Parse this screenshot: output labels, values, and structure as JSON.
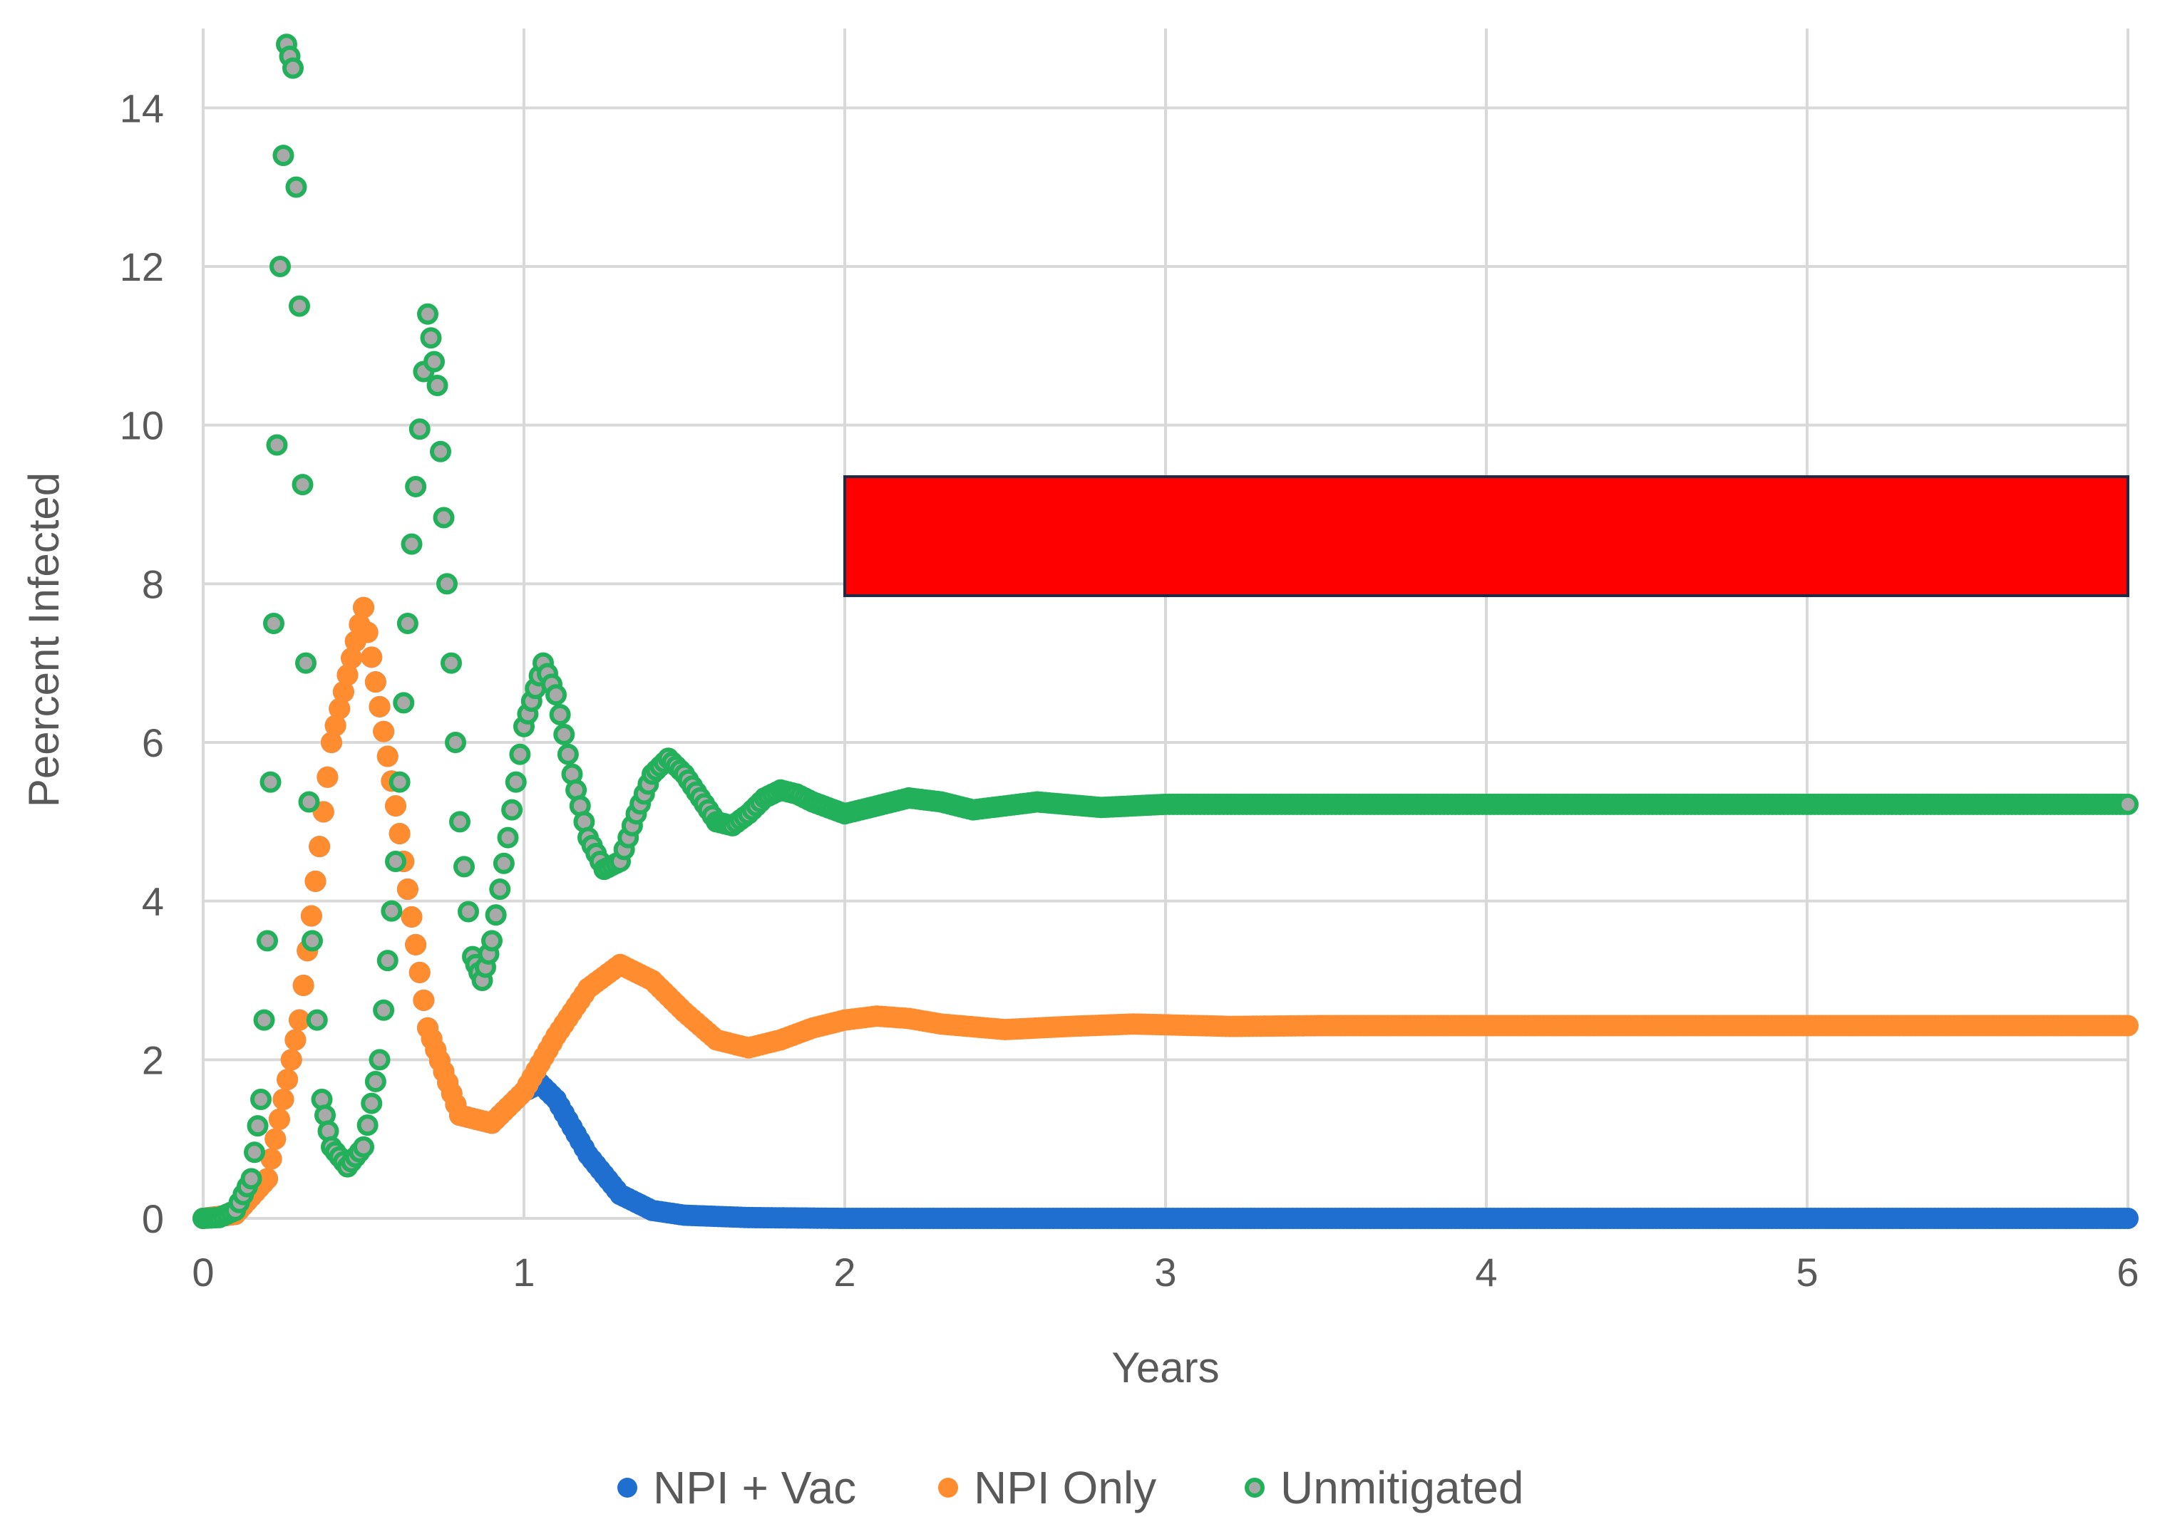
{
  "chart_data": {
    "type": "scatter",
    "title": "",
    "xlabel": "Years",
    "ylabel": "Peercent Infected",
    "xlim": [
      0,
      6
    ],
    "ylim": [
      0,
      15
    ],
    "x_ticks": [
      0,
      1,
      2,
      3,
      4,
      5,
      6
    ],
    "x_tick_labels": [
      "0",
      "1",
      "2",
      "3",
      "4",
      "5",
      "6"
    ],
    "y_ticks": [
      0,
      2,
      4,
      6,
      8,
      10,
      12,
      14
    ],
    "y_tick_labels": [
      "0",
      "2",
      "4",
      "6",
      "8",
      "10",
      "12",
      "14"
    ],
    "grid": true,
    "legend_position": "bottom",
    "series": [
      {
        "name": "NPI + Vac",
        "color": "#1f6fd1",
        "marker": "filled",
        "points": [
          [
            0,
            0
          ],
          [
            0.1,
            0.05
          ],
          [
            0.2,
            0.5
          ],
          [
            0.3,
            2.5
          ],
          [
            0.4,
            6.0
          ],
          [
            0.5,
            7.7
          ],
          [
            0.6,
            5.2
          ],
          [
            0.7,
            2.4
          ],
          [
            0.8,
            1.3
          ],
          [
            0.9,
            1.2
          ],
          [
            1.0,
            1.6
          ],
          [
            1.05,
            1.7
          ],
          [
            1.1,
            1.5
          ],
          [
            1.2,
            0.8
          ],
          [
            1.3,
            0.3
          ],
          [
            1.4,
            0.1
          ],
          [
            1.5,
            0.04
          ],
          [
            1.7,
            0.01
          ],
          [
            2.0,
            0
          ],
          [
            3.0,
            0
          ],
          [
            4.0,
            0
          ],
          [
            5.0,
            0
          ],
          [
            6.0,
            0
          ]
        ]
      },
      {
        "name": "NPI Only",
        "color": "#ff8c2e",
        "marker": "filled",
        "points": [
          [
            0,
            0
          ],
          [
            0.1,
            0.05
          ],
          [
            0.2,
            0.5
          ],
          [
            0.3,
            2.5
          ],
          [
            0.4,
            6.0
          ],
          [
            0.5,
            7.7
          ],
          [
            0.6,
            5.2
          ],
          [
            0.7,
            2.4
          ],
          [
            0.8,
            1.3
          ],
          [
            0.9,
            1.2
          ],
          [
            1.0,
            1.6
          ],
          [
            1.1,
            2.3
          ],
          [
            1.2,
            2.9
          ],
          [
            1.3,
            3.2
          ],
          [
            1.4,
            3.0
          ],
          [
            1.5,
            2.6
          ],
          [
            1.6,
            2.25
          ],
          [
            1.7,
            2.15
          ],
          [
            1.8,
            2.25
          ],
          [
            1.9,
            2.4
          ],
          [
            2.0,
            2.5
          ],
          [
            2.1,
            2.55
          ],
          [
            2.2,
            2.52
          ],
          [
            2.3,
            2.45
          ],
          [
            2.5,
            2.38
          ],
          [
            2.7,
            2.42
          ],
          [
            2.9,
            2.45
          ],
          [
            3.2,
            2.42
          ],
          [
            3.5,
            2.43
          ],
          [
            4.0,
            2.43
          ],
          [
            5.0,
            2.43
          ],
          [
            6.0,
            2.43
          ]
        ]
      },
      {
        "name": "Unmitigated",
        "color": "#22b15a",
        "marker": "outline",
        "points": [
          [
            0,
            0
          ],
          [
            0.05,
            0.01
          ],
          [
            0.1,
            0.1
          ],
          [
            0.15,
            0.5
          ],
          [
            0.18,
            1.5
          ],
          [
            0.2,
            3.5
          ],
          [
            0.22,
            7.5
          ],
          [
            0.24,
            12.0
          ],
          [
            0.26,
            14.8
          ],
          [
            0.28,
            14.5
          ],
          [
            0.3,
            11.5
          ],
          [
            0.32,
            7.0
          ],
          [
            0.34,
            3.5
          ],
          [
            0.37,
            1.5
          ],
          [
            0.4,
            0.9
          ],
          [
            0.45,
            0.65
          ],
          [
            0.5,
            0.9
          ],
          [
            0.55,
            2.0
          ],
          [
            0.6,
            4.5
          ],
          [
            0.65,
            8.5
          ],
          [
            0.7,
            11.4
          ],
          [
            0.73,
            10.5
          ],
          [
            0.76,
            8.0
          ],
          [
            0.8,
            5.0
          ],
          [
            0.84,
            3.3
          ],
          [
            0.87,
            3.0
          ],
          [
            0.9,
            3.5
          ],
          [
            0.95,
            4.8
          ],
          [
            1.0,
            6.2
          ],
          [
            1.06,
            7.0
          ],
          [
            1.1,
            6.6
          ],
          [
            1.15,
            5.6
          ],
          [
            1.2,
            4.8
          ],
          [
            1.25,
            4.4
          ],
          [
            1.3,
            4.5
          ],
          [
            1.35,
            5.1
          ],
          [
            1.4,
            5.6
          ],
          [
            1.45,
            5.8
          ],
          [
            1.5,
            5.6
          ],
          [
            1.55,
            5.3
          ],
          [
            1.6,
            5.0
          ],
          [
            1.65,
            4.95
          ],
          [
            1.7,
            5.1
          ],
          [
            1.75,
            5.3
          ],
          [
            1.8,
            5.4
          ],
          [
            1.85,
            5.35
          ],
          [
            1.9,
            5.25
          ],
          [
            2.0,
            5.1
          ],
          [
            2.1,
            5.2
          ],
          [
            2.2,
            5.3
          ],
          [
            2.3,
            5.25
          ],
          [
            2.4,
            5.15
          ],
          [
            2.5,
            5.2
          ],
          [
            2.6,
            5.25
          ],
          [
            2.8,
            5.18
          ],
          [
            3.0,
            5.22
          ],
          [
            4.0,
            5.22
          ],
          [
            5.0,
            5.22
          ],
          [
            6.0,
            5.22
          ]
        ]
      }
    ],
    "annotations": [
      {
        "type": "rectangle",
        "fill": "#ff0000",
        "stroke": "#1f2a44",
        "x0": 2.0,
        "x1": 6.0,
        "y0": 7.85,
        "y1": 9.35
      }
    ]
  }
}
